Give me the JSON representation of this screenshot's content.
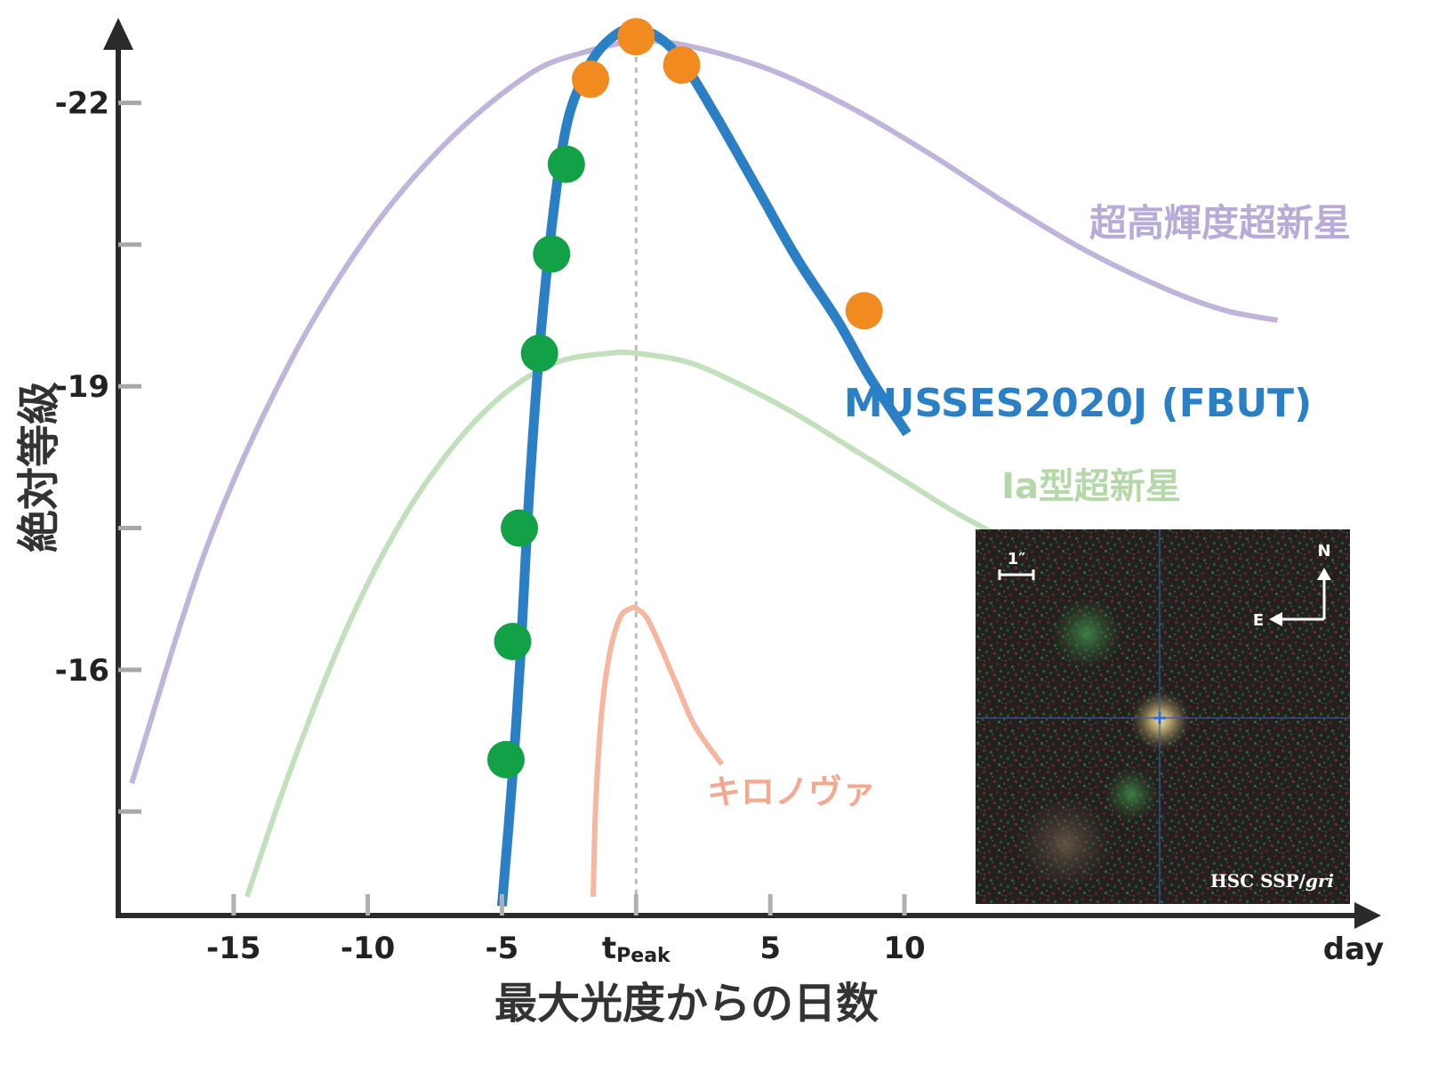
{
  "chart_data": {
    "type": "line",
    "xlabel": "最大光度からの日数",
    "ylabel": "絶対等級",
    "x_unit_label": "day",
    "x_ticks": [
      {
        "value": -15,
        "label": "-15"
      },
      {
        "value": -10,
        "label": "-10"
      },
      {
        "value": -5,
        "label": "-5"
      },
      {
        "value": 0,
        "label": "t",
        "sub": "Peak"
      },
      {
        "value": 5,
        "label": "5"
      },
      {
        "value": 10,
        "label": "10"
      }
    ],
    "y_ticks": [
      {
        "value": -22,
        "label": "-22"
      },
      {
        "value": -19,
        "label": "-19"
      },
      {
        "value": -16,
        "label": "-16"
      }
    ],
    "y_minor_ticks": [
      -20.5,
      -17.5,
      -14.5
    ],
    "xlim": [
      -19.3,
      27.5
    ],
    "ylim": [
      -13.4,
      -22.9
    ],
    "y_inverted": true,
    "peak_line_x": 0,
    "series": [
      {
        "name": "超高輝度超新星",
        "color": "#c0b4da",
        "label_color": "#b9abd8",
        "x": [
          -18.8,
          -16,
          -13,
          -10,
          -7,
          -4,
          -2,
          0,
          2,
          5,
          8,
          11,
          14,
          17,
          20,
          22,
          23.9
        ],
        "y": [
          -14.8,
          -17.3,
          -19.2,
          -20.6,
          -21.6,
          -22.3,
          -22.53,
          -22.65,
          -22.6,
          -22.35,
          -21.95,
          -21.45,
          -20.9,
          -20.4,
          -20.0,
          -19.8,
          -19.7
        ]
      },
      {
        "name": "MUSSES2020J (FBUT)",
        "color": "#2b7fc4",
        "label_color": "#2b7fc4",
        "x": [
          -5,
          -4.6,
          -4.3,
          -4,
          -3.6,
          -3.1,
          -2.6,
          -2.0,
          -1.4,
          -0.6,
          0,
          0.8,
          1.7,
          3,
          4.5,
          6,
          7.5,
          8.7,
          10.1
        ],
        "y": [
          -13.5,
          -14.9,
          -16.2,
          -17.8,
          -19.4,
          -20.8,
          -21.75,
          -22.25,
          -22.55,
          -22.75,
          -22.78,
          -22.7,
          -22.45,
          -21.85,
          -21.1,
          -20.35,
          -19.7,
          -19.1,
          -18.5
        ]
      },
      {
        "name": "Ia型超新星",
        "color": "#c2e0bb",
        "label_color": "#b5d8a9",
        "x": [
          -14.5,
          -13,
          -11,
          -9,
          -7,
          -5,
          -3,
          -1,
          0,
          2,
          4,
          6,
          8,
          10,
          12,
          14,
          15.5
        ],
        "y": [
          -13.6,
          -14.85,
          -16.3,
          -17.45,
          -18.3,
          -18.9,
          -19.25,
          -19.35,
          -19.35,
          -19.25,
          -19.0,
          -18.7,
          -18.35,
          -18.0,
          -17.65,
          -17.35,
          -17.15
        ]
      },
      {
        "name": "キロノヴァ",
        "color": "#f6b6a0",
        "label_color": "#f3a98f",
        "x": [
          -1.6,
          -1.5,
          -1.3,
          -1.0,
          -0.6,
          -0.2,
          0,
          0.4,
          0.9,
          1.5,
          2.2,
          3.2
        ],
        "y": [
          -13.6,
          -14.6,
          -15.5,
          -16.15,
          -16.55,
          -16.65,
          -16.65,
          -16.55,
          -16.25,
          -15.85,
          -15.4,
          -15.0
        ]
      }
    ],
    "points": {
      "green": {
        "color": "#13a147",
        "x": [
          -4.85,
          -4.6,
          -4.35,
          -3.6,
          -3.15,
          -2.6
        ],
        "y": [
          -15.05,
          -16.3,
          -17.5,
          -19.35,
          -20.4,
          -21.35
        ]
      },
      "orange": {
        "color": "#f18a1f",
        "x": [
          -1.7,
          0,
          1.7,
          8.5
        ],
        "y": [
          -22.25,
          -22.7,
          -22.4,
          -19.8
        ]
      }
    },
    "annotations": [
      {
        "text": "超高輝度超新星",
        "series": 0
      },
      {
        "text": "MUSSES2020J (FBUT)",
        "series": 1
      },
      {
        "text": "Ia型超新星",
        "series": 2
      },
      {
        "text": "キロノヴァ",
        "series": 3
      }
    ]
  },
  "inset": {
    "scale_label": "1″",
    "north_label": "N",
    "east_label": "E",
    "credit_prefix": "HSC SSP/",
    "credit_filter": "gri"
  }
}
